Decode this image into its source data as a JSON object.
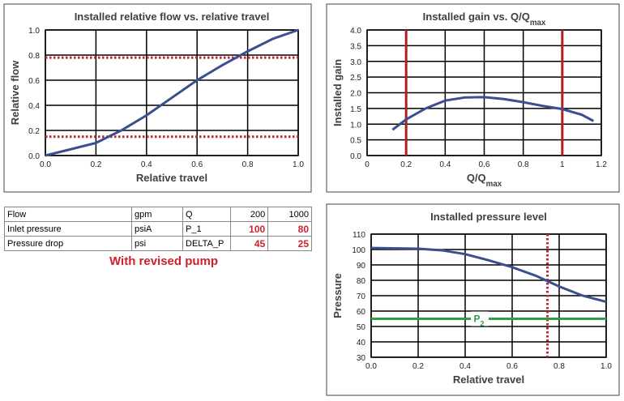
{
  "chart_data": [
    {
      "type": "line",
      "title": "Installed relative flow vs. relative travel",
      "xlabel": "Relative travel",
      "ylabel": "Relative flow",
      "x": [
        0,
        0.1,
        0.2,
        0.3,
        0.4,
        0.5,
        0.6,
        0.7,
        0.8,
        0.9,
        1.0
      ],
      "values": [
        0,
        0.05,
        0.1,
        0.2,
        0.32,
        0.46,
        0.6,
        0.72,
        0.83,
        0.93,
        1.0
      ],
      "color": "#3a4f8f",
      "xlim": [
        0,
        1
      ],
      "ylim": [
        0,
        1
      ],
      "xticks": [
        {
          "value": 0,
          "label": "0.0"
        },
        0.2,
        0.4,
        0.6,
        0.8,
        {
          "value": 1,
          "label": "1.0"
        }
      ],
      "yticks": [
        {
          "value": 0,
          "label": "0.0"
        },
        0.2,
        0.4,
        0.6,
        0.8,
        {
          "value": 1,
          "label": "1.0"
        }
      ],
      "grid": true,
      "ref_lines": [
        {
          "axis": "y",
          "value": 0.78,
          "color": "#c0262d",
          "style": "dotted"
        },
        {
          "axis": "y",
          "value": 0.15,
          "color": "#c0262d",
          "style": "dotted"
        }
      ]
    },
    {
      "type": "line",
      "title": "Installed gain vs. Q/Q",
      "title_sub": "max",
      "xlabel": "Q/Q",
      "xlabel_sub": "max",
      "ylabel": "Installed gain",
      "x": [
        0.13,
        0.2,
        0.3,
        0.4,
        0.5,
        0.6,
        0.7,
        0.8,
        0.9,
        1.0,
        1.1,
        1.16
      ],
      "values": [
        0.82,
        1.15,
        1.5,
        1.75,
        1.85,
        1.86,
        1.8,
        1.7,
        1.58,
        1.48,
        1.3,
        1.1
      ],
      "color": "#3a4f8f",
      "xlim": [
        0,
        1.2
      ],
      "ylim": [
        0,
        4
      ],
      "xticks": [
        0,
        0.2,
        0.4,
        0.6,
        0.8,
        1,
        1.2
      ],
      "yticks": [
        {
          "value": 0,
          "label": "0.0"
        },
        0.5,
        {
          "value": 1,
          "label": "1.0"
        },
        1.5,
        {
          "value": 2,
          "label": "2.0"
        },
        2.5,
        {
          "value": 3,
          "label": "3.0"
        },
        3.5,
        {
          "value": 4,
          "label": "4.0"
        }
      ],
      "grid": true,
      "ref_lines": [
        {
          "axis": "x",
          "value": 0.2,
          "color": "#b01e24",
          "style": "solid"
        },
        {
          "axis": "x",
          "value": 1.0,
          "color": "#b01e24",
          "style": "solid"
        }
      ]
    },
    {
      "type": "line",
      "title": "Installed pressure level",
      "xlabel": "Relative travel",
      "ylabel": "Pressure",
      "x": [
        0,
        0.2,
        0.3,
        0.4,
        0.5,
        0.6,
        0.7,
        0.8,
        0.9,
        1.0
      ],
      "values": [
        101,
        100.5,
        99.5,
        97,
        93,
        88.5,
        83,
        76,
        70,
        66
      ],
      "color": "#3a4f8f",
      "xlim": [
        0,
        1
      ],
      "ylim": [
        30,
        110
      ],
      "xticks": [
        {
          "value": 0,
          "label": "0.0"
        },
        0.2,
        0.4,
        0.6,
        0.8,
        {
          "value": 1,
          "label": "1.0"
        }
      ],
      "yticks": [
        30,
        40,
        50,
        60,
        70,
        80,
        90,
        100,
        110
      ],
      "grid": true,
      "ref_lines": [
        {
          "axis": "x",
          "value": 0.75,
          "color": "#c0262d",
          "style": "dotted"
        },
        {
          "axis": "y",
          "value": 55,
          "color": "#2e9e4a",
          "style": "solid"
        }
      ],
      "annotation": {
        "text": "P",
        "sub": "2",
        "color": "#2e9e4a"
      }
    }
  ],
  "table": {
    "rows": [
      [
        "Flow",
        "gpm",
        "Q",
        "200",
        "1000"
      ],
      [
        "Inlet pressure",
        "psiA",
        "P_1",
        "100",
        "80"
      ],
      [
        "Pressure drop",
        "psi",
        "DELTA_P",
        "45",
        "25"
      ]
    ]
  },
  "note": "With revised pump"
}
